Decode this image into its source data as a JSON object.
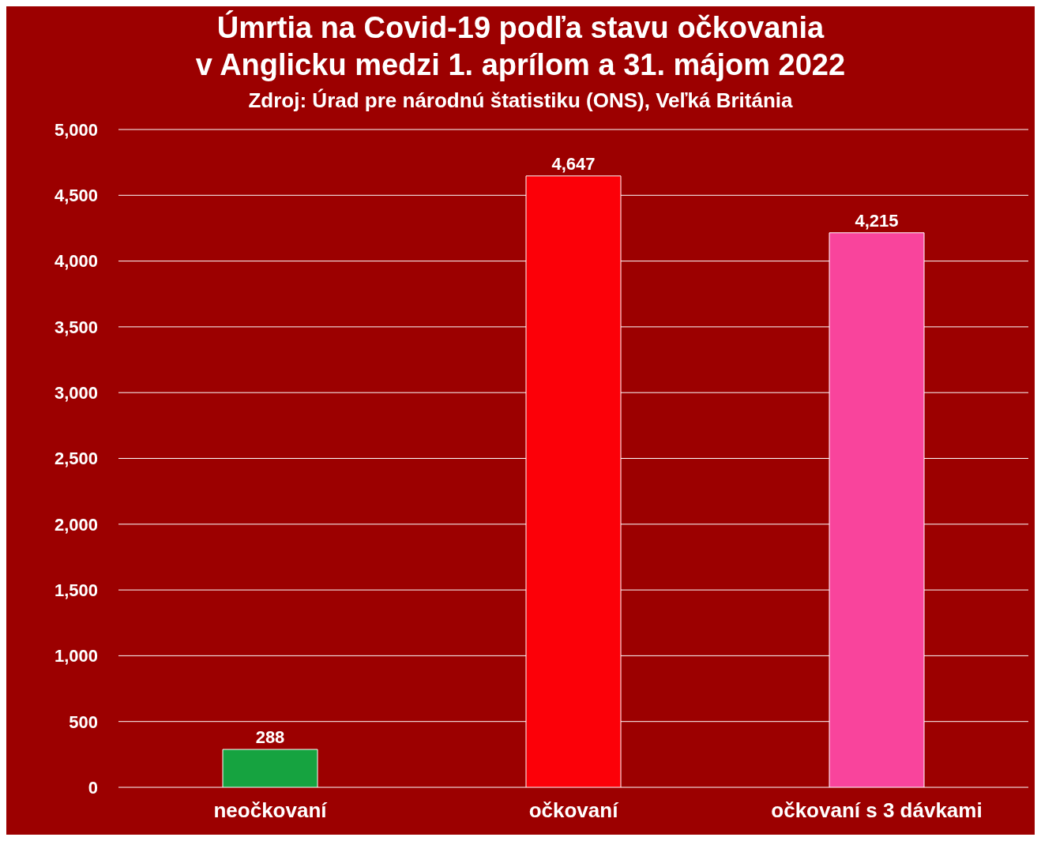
{
  "chart_data": {
    "type": "bar",
    "title": "Úmrtia na Covid-19 podľa stavu očkovania\nv Anglicku medzi 1. aprílom a 31. májom 2022",
    "subtitle": "Zdroj: Úrad pre národnú štatistiku (ONS), Veľká Británia",
    "categories": [
      "neočkovaní",
      "očkovaní",
      "očkovaní s 3 dávkami"
    ],
    "values": [
      288,
      4647,
      4215
    ],
    "value_labels": [
      "288",
      "4,647",
      "4,215"
    ],
    "colors": [
      "#16a340",
      "#fc0008",
      "#f9449c"
    ],
    "ylim": [
      0,
      5000
    ],
    "yticks": [
      {
        "value": 0,
        "label": "0"
      },
      {
        "value": 500,
        "label": "500"
      },
      {
        "value": 1000,
        "label": "1,000"
      },
      {
        "value": 1500,
        "label": "1,500"
      },
      {
        "value": 2000,
        "label": "2,000"
      },
      {
        "value": 2500,
        "label": "2,500"
      },
      {
        "value": 3000,
        "label": "3,000"
      },
      {
        "value": 3500,
        "label": "3,500"
      },
      {
        "value": 4000,
        "label": "4,000"
      },
      {
        "value": 4500,
        "label": "4,500"
      },
      {
        "value": 5000,
        "label": "5,000"
      }
    ],
    "grid": "y"
  }
}
